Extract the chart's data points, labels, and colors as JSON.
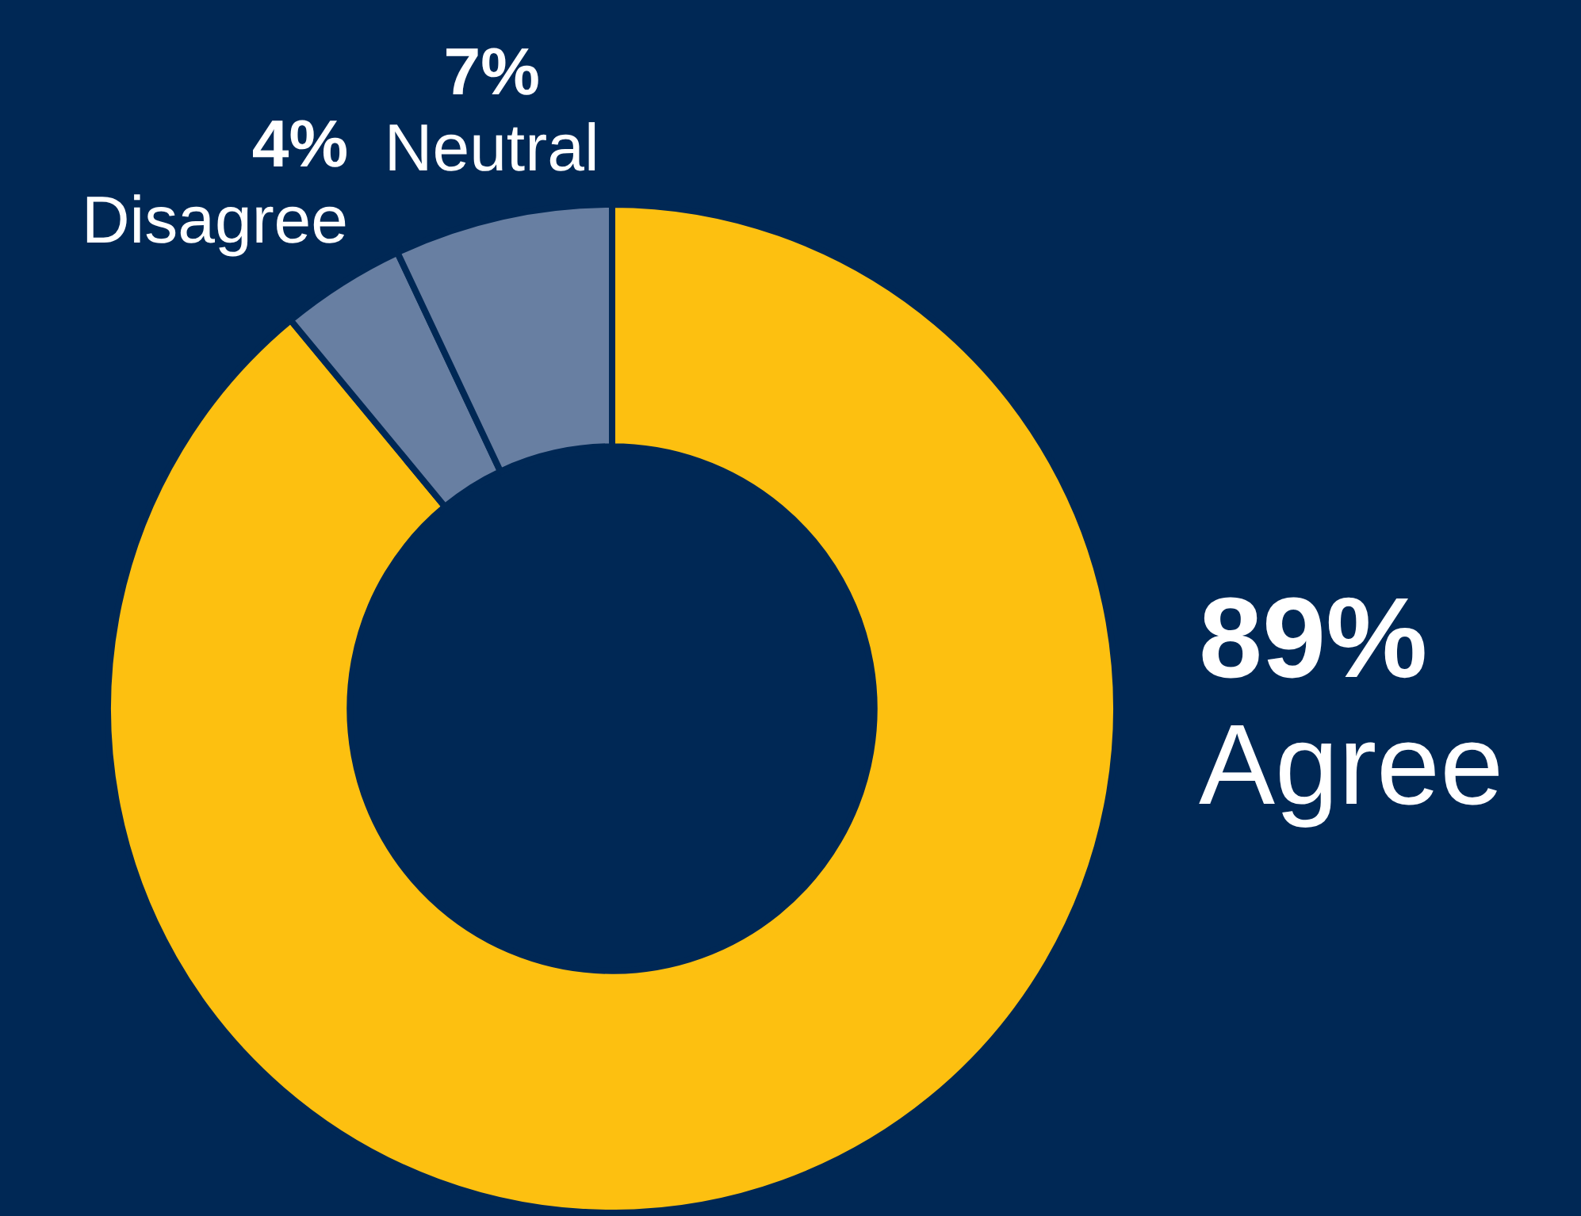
{
  "chart_data": {
    "type": "donut",
    "categories": [
      "Agree",
      "Disagree",
      "Neutral"
    ],
    "values": [
      89,
      4,
      7
    ],
    "colors": [
      "#fdc010",
      "#687fa2",
      "#687fa2"
    ],
    "value_labels": [
      "89%",
      "4%",
      "7%"
    ],
    "legend": false
  }
}
